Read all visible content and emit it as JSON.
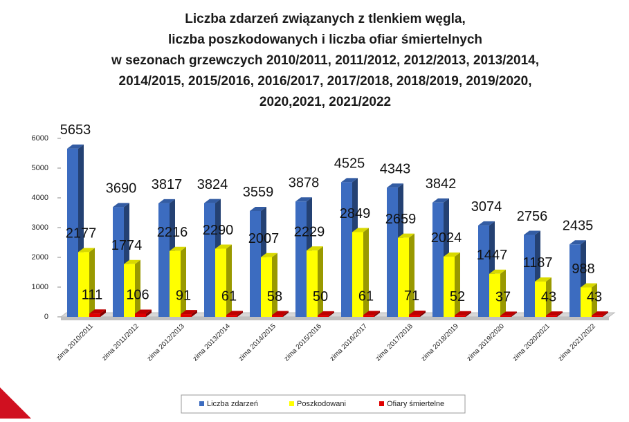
{
  "chart_data": {
    "type": "bar",
    "title": [
      "Liczba zdarzeń związanych z tlenkiem węgla,",
      "liczba poszkodowanych i liczba ofiar śmiertelnych",
      "w sezonach grzewczych 2010/2011, 2011/2012, 2012/2013, 2013/2014,",
      "2014/2015, 2015/2016, 2016/2017, 2017/2018, 2018/2019, 2019/2020,",
      "2020,2021, 2021/2022"
    ],
    "categories": [
      "zima 2010/2011",
      "zima 2011/2012",
      "zima 2012/2013",
      "zima 2013/2014",
      "zima 2014/2015",
      "zima 2015/2016",
      "zima 2016/2017",
      "zima 2017/2018",
      "zima 2018/2019",
      "zima 2019/2020",
      "zima 2020/2021",
      "zima 2021/2022"
    ],
    "series": [
      {
        "name": "Liczba zdarzeń",
        "color": "#3c6cc0",
        "values": [
          5653,
          3690,
          3817,
          3824,
          3559,
          3878,
          4525,
          4343,
          3842,
          3074,
          2756,
          2435
        ]
      },
      {
        "name": "Poszkodowani",
        "color": "#ffff00",
        "values": [
          2177,
          1774,
          2216,
          2290,
          2007,
          2229,
          2849,
          2659,
          2024,
          1447,
          1187,
          988
        ]
      },
      {
        "name": "Ofiary śmiertelne",
        "color": "#e00000",
        "values": [
          111,
          106,
          91,
          61,
          58,
          50,
          61,
          71,
          52,
          37,
          43,
          43
        ]
      }
    ],
    "ylim": [
      0,
      6000
    ],
    "yticks": [
      0,
      1000,
      2000,
      3000,
      4000,
      5000,
      6000
    ],
    "legend": "bottom"
  }
}
